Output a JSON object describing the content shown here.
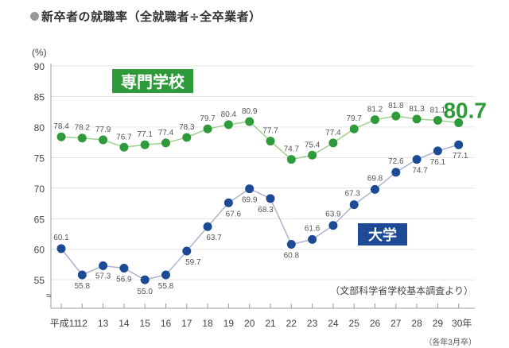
{
  "chart_data": {
    "type": "line",
    "title": "新卒者の就職率（全就職者÷全卒業者）",
    "ylabel": "(%)",
    "ylim": [
      52,
      90
    ],
    "yticks": [
      "90",
      "85",
      "80",
      "75",
      "70",
      "65",
      "60",
      "55"
    ],
    "grid": true,
    "categories": [
      "平成11",
      "12",
      "13",
      "14",
      "15",
      "16",
      "17",
      "18",
      "19",
      "20",
      "21",
      "22",
      "23",
      "24",
      "25",
      "26",
      "27",
      "28",
      "29",
      "30年"
    ],
    "series": [
      {
        "name": "専門学校",
        "color": "#2e9a3a",
        "values": [
          78.4,
          78.2,
          77.9,
          76.7,
          77.1,
          77.4,
          78.3,
          79.7,
          80.4,
          80.9,
          77.7,
          74.7,
          75.4,
          77.4,
          79.7,
          81.2,
          81.8,
          81.3,
          81.1,
          80.7
        ]
      },
      {
        "name": "大学",
        "color": "#1d4a94",
        "values": [
          60.1,
          55.8,
          57.3,
          56.9,
          55.0,
          55.8,
          59.7,
          63.7,
          67.6,
          69.9,
          68.3,
          60.8,
          61.6,
          63.9,
          67.3,
          69.8,
          72.6,
          74.7,
          76.1,
          77.1
        ]
      }
    ],
    "source_note": "（文部科学省学校基本調査より）",
    "x_note": "（各年3月卒）"
  }
}
